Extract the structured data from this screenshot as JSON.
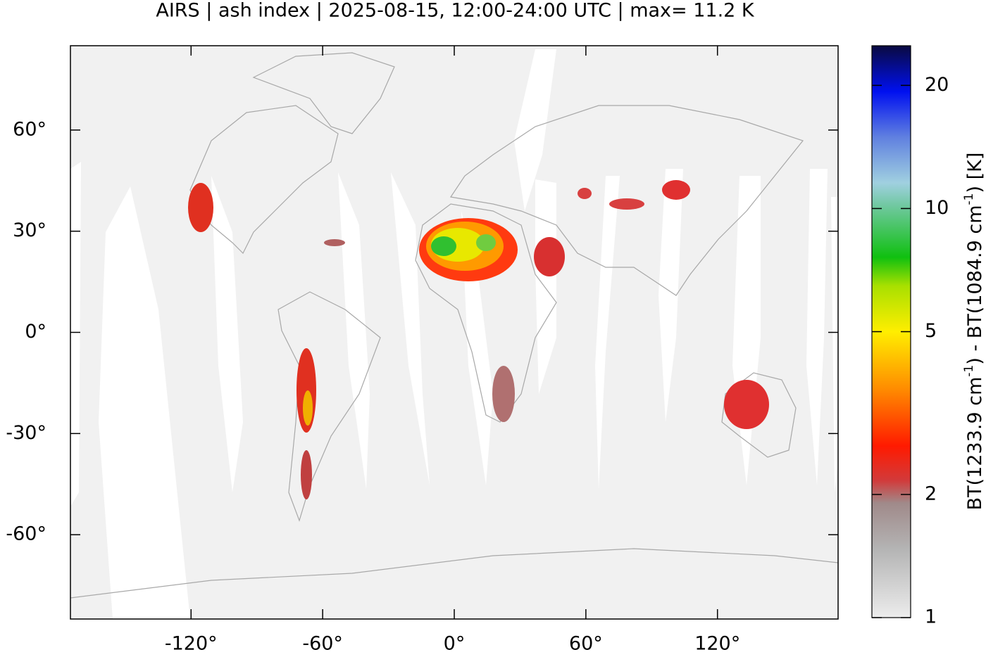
{
  "chart_data": {
    "type": "map",
    "title": "AIRS | ash index | 2025-08-15, 12:00-24:00 UTC | max= 11.2 K",
    "xlim": [
      -175,
      175
    ],
    "ylim": [
      -85,
      85
    ],
    "xticks": [
      {
        "value": -120,
        "label": "-120°"
      },
      {
        "value": -60,
        "label": "-60°"
      },
      {
        "value": 0,
        "label": "0°"
      },
      {
        "value": 60,
        "label": "60°"
      },
      {
        "value": 120,
        "label": "120°"
      }
    ],
    "yticks": [
      {
        "value": 60,
        "label": "60°"
      },
      {
        "value": 30,
        "label": "30°"
      },
      {
        "value": 0,
        "label": "0°"
      },
      {
        "value": -30,
        "label": "-30°"
      },
      {
        "value": -60,
        "label": "-60°"
      }
    ],
    "colorbar": {
      "log_scale": true,
      "lim": [
        1,
        25
      ],
      "ticks": [
        1,
        2,
        5,
        10,
        20
      ],
      "label": [
        "BT(1233.9 cm",
        "-1",
        ") - BT(1084.9 cm",
        "-1",
        ") [K]"
      ]
    }
  }
}
